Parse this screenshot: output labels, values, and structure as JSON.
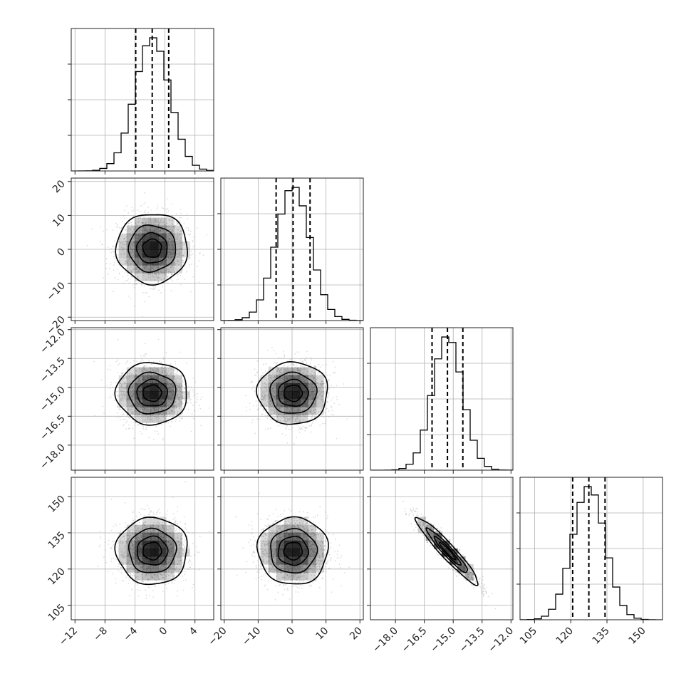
{
  "chart_data": {
    "type": "corner",
    "parameters": [
      {
        "id": "p0",
        "range": [
          -12.5,
          6.5
        ],
        "ticks": [
          -12,
          -8,
          -4,
          0,
          4
        ],
        "tick_labels": [
          "−12",
          "−8",
          "−4",
          "0",
          "4"
        ],
        "mean": -1.7,
        "std": 2.3,
        "quantiles": [
          -3.9,
          -1.7,
          0.5
        ]
      },
      {
        "id": "p1",
        "range": [
          -21,
          21
        ],
        "ticks": [
          -20,
          -10,
          0,
          10,
          20
        ],
        "tick_labels": [
          "−20",
          "−10",
          "0",
          "10",
          "20"
        ],
        "mean": 0.3,
        "std": 5,
        "quantiles": [
          -4.7,
          0.3,
          5.3
        ]
      },
      {
        "id": "p2",
        "range": [
          -19.3,
          -11.9
        ],
        "ticks": [
          -18.0,
          -16.5,
          -15.0,
          -13.5,
          -12.0
        ],
        "tick_labels": [
          "−18.0",
          "−16.5",
          "−15.0",
          "−13.5",
          "−12.0"
        ],
        "mean": -15.3,
        "std": 0.78,
        "quantiles": [
          -16.1,
          -15.3,
          -14.5
        ]
      },
      {
        "id": "p3",
        "range": [
          99,
          158
        ],
        "ticks": [
          105,
          120,
          135,
          150
        ],
        "tick_labels": [
          "105",
          "120",
          "135",
          "150"
        ],
        "mean": 127.5,
        "std": 6.7,
        "quantiles": [
          120.8,
          127.5,
          134.2
        ]
      }
    ],
    "correlations": [
      [
        1,
        0,
        0,
        0
      ],
      [
        0,
        1,
        0,
        0
      ],
      [
        0,
        0,
        1,
        -0.95
      ],
      [
        0,
        0,
        -0.95,
        1
      ]
    ],
    "histogram_bins": 20,
    "contour_levels_sigma": [
      0.5,
      1.0,
      1.5,
      2.0
    ],
    "grid": true,
    "colors": {
      "hist_line": "#000000",
      "scatter": "#9e9e9e",
      "density": "#000000",
      "grid": "#b0b0b0"
    }
  }
}
